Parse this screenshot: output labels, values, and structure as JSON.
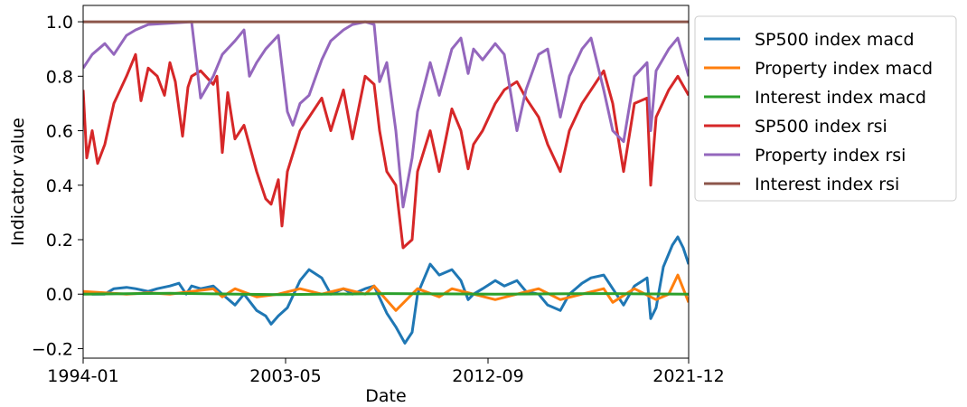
{
  "chart_data": {
    "type": "line",
    "title": "",
    "xlabel": "Date",
    "ylabel": "Indicator value",
    "x_range": [
      "1994-01",
      "2021-12"
    ],
    "ylim": [
      -0.235,
      1.06
    ],
    "xticks": [
      "1994-01",
      "2003-05",
      "2012-09",
      "2021-12"
    ],
    "yticks": [
      -0.2,
      0.0,
      0.2,
      0.4,
      0.6,
      0.8,
      1.0
    ],
    "ytick_labels": [
      "−0.2",
      "0.0",
      "0.2",
      "0.4",
      "0.6",
      "0.8",
      "1.0"
    ],
    "grid": false,
    "legend_position": "outside-right",
    "series": [
      {
        "name": "SP500 index macd",
        "color": "#1f77b4",
        "points": [
          [
            "1994-01",
            0.005
          ],
          [
            "1994-06",
            0.0
          ],
          [
            "1995-01",
            0.0
          ],
          [
            "1995-06",
            0.02
          ],
          [
            "1996-01",
            0.025
          ],
          [
            "1996-06",
            0.02
          ],
          [
            "1997-01",
            0.01
          ],
          [
            "1997-06",
            0.02
          ],
          [
            "1998-01",
            0.03
          ],
          [
            "1998-06",
            0.04
          ],
          [
            "1998-10",
            0.0
          ],
          [
            "1999-01",
            0.03
          ],
          [
            "1999-06",
            0.02
          ],
          [
            "2000-01",
            0.03
          ],
          [
            "2000-06",
            0.0
          ],
          [
            "2001-01",
            -0.04
          ],
          [
            "2001-06",
            0.0
          ],
          [
            "2002-01",
            -0.06
          ],
          [
            "2002-06",
            -0.08
          ],
          [
            "2002-09",
            -0.11
          ],
          [
            "2003-01",
            -0.08
          ],
          [
            "2003-06",
            -0.05
          ],
          [
            "2004-01",
            0.05
          ],
          [
            "2004-06",
            0.09
          ],
          [
            "2005-01",
            0.06
          ],
          [
            "2005-06",
            0.0
          ],
          [
            "2006-01",
            0.02
          ],
          [
            "2006-06",
            0.0
          ],
          [
            "2007-01",
            0.02
          ],
          [
            "2007-06",
            0.03
          ],
          [
            "2008-01",
            -0.07
          ],
          [
            "2008-06",
            -0.12
          ],
          [
            "2008-11",
            -0.18
          ],
          [
            "2009-03",
            -0.14
          ],
          [
            "2009-06",
            0.0
          ],
          [
            "2010-01",
            0.11
          ],
          [
            "2010-06",
            0.07
          ],
          [
            "2011-01",
            0.09
          ],
          [
            "2011-06",
            0.05
          ],
          [
            "2011-10",
            -0.02
          ],
          [
            "2012-01",
            0.0
          ],
          [
            "2012-06",
            0.02
          ],
          [
            "2013-01",
            0.05
          ],
          [
            "2013-06",
            0.03
          ],
          [
            "2014-01",
            0.05
          ],
          [
            "2014-06",
            0.01
          ],
          [
            "2015-01",
            0.0
          ],
          [
            "2015-06",
            -0.04
          ],
          [
            "2016-01",
            -0.06
          ],
          [
            "2016-06",
            0.0
          ],
          [
            "2017-01",
            0.04
          ],
          [
            "2017-06",
            0.06
          ],
          [
            "2018-01",
            0.07
          ],
          [
            "2018-06",
            0.02
          ],
          [
            "2018-12",
            -0.04
          ],
          [
            "2019-06",
            0.03
          ],
          [
            "2020-01",
            0.06
          ],
          [
            "2020-03",
            -0.09
          ],
          [
            "2020-06",
            -0.05
          ],
          [
            "2020-10",
            0.1
          ],
          [
            "2021-03",
            0.18
          ],
          [
            "2021-06",
            0.21
          ],
          [
            "2021-09",
            0.17
          ],
          [
            "2021-12",
            0.11
          ]
        ]
      },
      {
        "name": "Property index macd",
        "color": "#ff7f0e",
        "points": [
          [
            "1994-01",
            0.01
          ],
          [
            "1995-01",
            0.005
          ],
          [
            "1996-01",
            0.0
          ],
          [
            "1997-01",
            0.005
          ],
          [
            "1998-01",
            0.0
          ],
          [
            "1999-01",
            0.01
          ],
          [
            "2000-01",
            0.02
          ],
          [
            "2000-06",
            -0.01
          ],
          [
            "2001-01",
            0.02
          ],
          [
            "2002-01",
            -0.01
          ],
          [
            "2003-01",
            0.0
          ],
          [
            "2004-01",
            0.02
          ],
          [
            "2005-01",
            0.0
          ],
          [
            "2006-01",
            0.02
          ],
          [
            "2007-01",
            0.0
          ],
          [
            "2007-06",
            0.03
          ],
          [
            "2008-06",
            -0.06
          ],
          [
            "2009-06",
            0.02
          ],
          [
            "2010-06",
            -0.01
          ],
          [
            "2011-01",
            0.02
          ],
          [
            "2012-01",
            0.0
          ],
          [
            "2013-01",
            -0.02
          ],
          [
            "2014-01",
            0.0
          ],
          [
            "2015-01",
            0.02
          ],
          [
            "2016-01",
            -0.02
          ],
          [
            "2017-01",
            0.0
          ],
          [
            "2018-01",
            0.02
          ],
          [
            "2018-06",
            -0.03
          ],
          [
            "2019-06",
            0.02
          ],
          [
            "2020-06",
            -0.02
          ],
          [
            "2021-01",
            0.0
          ],
          [
            "2021-06",
            0.07
          ],
          [
            "2021-12",
            -0.03
          ]
        ]
      },
      {
        "name": "Interest index macd",
        "color": "#2ca02c",
        "points": [
          [
            "1994-01",
            0.0
          ],
          [
            "1998-01",
            0.003
          ],
          [
            "2003-01",
            -0.002
          ],
          [
            "2008-01",
            0.002
          ],
          [
            "2013-01",
            0.0
          ],
          [
            "2018-01",
            0.002
          ],
          [
            "2021-12",
            0.0
          ]
        ]
      },
      {
        "name": "SP500 index rsi",
        "color": "#d62728",
        "points": [
          [
            "1994-01",
            0.75
          ],
          [
            "1994-03",
            0.5
          ],
          [
            "1994-06",
            0.6
          ],
          [
            "1994-09",
            0.48
          ],
          [
            "1995-01",
            0.55
          ],
          [
            "1995-06",
            0.7
          ],
          [
            "1996-01",
            0.8
          ],
          [
            "1996-06",
            0.88
          ],
          [
            "1996-09",
            0.71
          ],
          [
            "1997-01",
            0.83
          ],
          [
            "1997-06",
            0.8
          ],
          [
            "1997-10",
            0.73
          ],
          [
            "1998-01",
            0.85
          ],
          [
            "1998-04",
            0.78
          ],
          [
            "1998-08",
            0.58
          ],
          [
            "1998-11",
            0.76
          ],
          [
            "1999-01",
            0.8
          ],
          [
            "1999-06",
            0.82
          ],
          [
            "2000-01",
            0.77
          ],
          [
            "2000-03",
            0.8
          ],
          [
            "2000-06",
            0.52
          ],
          [
            "2000-09",
            0.74
          ],
          [
            "2001-01",
            0.57
          ],
          [
            "2001-06",
            0.62
          ],
          [
            "2002-01",
            0.45
          ],
          [
            "2002-06",
            0.35
          ],
          [
            "2002-09",
            0.33
          ],
          [
            "2003-01",
            0.42
          ],
          [
            "2003-03",
            0.25
          ],
          [
            "2003-06",
            0.45
          ],
          [
            "2004-01",
            0.6
          ],
          [
            "2004-06",
            0.65
          ],
          [
            "2005-01",
            0.72
          ],
          [
            "2005-06",
            0.6
          ],
          [
            "2006-01",
            0.75
          ],
          [
            "2006-06",
            0.57
          ],
          [
            "2007-01",
            0.8
          ],
          [
            "2007-06",
            0.77
          ],
          [
            "2007-09",
            0.6
          ],
          [
            "2008-01",
            0.45
          ],
          [
            "2008-06",
            0.4
          ],
          [
            "2008-10",
            0.17
          ],
          [
            "2009-03",
            0.2
          ],
          [
            "2009-06",
            0.45
          ],
          [
            "2010-01",
            0.6
          ],
          [
            "2010-06",
            0.45
          ],
          [
            "2011-01",
            0.68
          ],
          [
            "2011-06",
            0.6
          ],
          [
            "2011-10",
            0.46
          ],
          [
            "2012-01",
            0.55
          ],
          [
            "2012-06",
            0.6
          ],
          [
            "2013-01",
            0.7
          ],
          [
            "2013-06",
            0.75
          ],
          [
            "2014-01",
            0.78
          ],
          [
            "2014-06",
            0.72
          ],
          [
            "2015-01",
            0.65
          ],
          [
            "2015-06",
            0.55
          ],
          [
            "2016-01",
            0.45
          ],
          [
            "2016-06",
            0.6
          ],
          [
            "2017-01",
            0.7
          ],
          [
            "2017-06",
            0.75
          ],
          [
            "2018-01",
            0.82
          ],
          [
            "2018-06",
            0.7
          ],
          [
            "2018-12",
            0.45
          ],
          [
            "2019-06",
            0.7
          ],
          [
            "2020-01",
            0.72
          ],
          [
            "2020-03",
            0.4
          ],
          [
            "2020-06",
            0.65
          ],
          [
            "2021-01",
            0.75
          ],
          [
            "2021-06",
            0.8
          ],
          [
            "2021-12",
            0.73
          ]
        ]
      },
      {
        "name": "Property index rsi",
        "color": "#9467bd",
        "points": [
          [
            "1994-01",
            0.83
          ],
          [
            "1994-06",
            0.88
          ],
          [
            "1995-01",
            0.92
          ],
          [
            "1995-06",
            0.88
          ],
          [
            "1996-01",
            0.95
          ],
          [
            "1996-06",
            0.97
          ],
          [
            "1997-01",
            0.99
          ],
          [
            "1998-01",
            0.995
          ],
          [
            "1999-01",
            1.0
          ],
          [
            "1999-06",
            0.72
          ],
          [
            "2000-01",
            0.8
          ],
          [
            "2000-06",
            0.88
          ],
          [
            "2001-01",
            0.93
          ],
          [
            "2001-06",
            0.97
          ],
          [
            "2001-09",
            0.8
          ],
          [
            "2002-01",
            0.85
          ],
          [
            "2002-06",
            0.9
          ],
          [
            "2003-01",
            0.95
          ],
          [
            "2003-06",
            0.67
          ],
          [
            "2003-09",
            0.62
          ],
          [
            "2004-01",
            0.7
          ],
          [
            "2004-06",
            0.73
          ],
          [
            "2005-01",
            0.86
          ],
          [
            "2005-06",
            0.93
          ],
          [
            "2006-01",
            0.97
          ],
          [
            "2006-06",
            0.99
          ],
          [
            "2007-01",
            1.0
          ],
          [
            "2007-06",
            0.99
          ],
          [
            "2007-09",
            0.78
          ],
          [
            "2008-01",
            0.85
          ],
          [
            "2008-06",
            0.6
          ],
          [
            "2008-10",
            0.32
          ],
          [
            "2009-03",
            0.5
          ],
          [
            "2009-06",
            0.67
          ],
          [
            "2010-01",
            0.85
          ],
          [
            "2010-06",
            0.73
          ],
          [
            "2011-01",
            0.9
          ],
          [
            "2011-06",
            0.94
          ],
          [
            "2011-10",
            0.81
          ],
          [
            "2012-01",
            0.9
          ],
          [
            "2012-06",
            0.86
          ],
          [
            "2013-01",
            0.92
          ],
          [
            "2013-06",
            0.88
          ],
          [
            "2014-01",
            0.6
          ],
          [
            "2014-06",
            0.75
          ],
          [
            "2015-01",
            0.88
          ],
          [
            "2015-06",
            0.9
          ],
          [
            "2016-01",
            0.65
          ],
          [
            "2016-06",
            0.8
          ],
          [
            "2017-01",
            0.9
          ],
          [
            "2017-06",
            0.94
          ],
          [
            "2018-01",
            0.75
          ],
          [
            "2018-06",
            0.6
          ],
          [
            "2018-12",
            0.56
          ],
          [
            "2019-06",
            0.8
          ],
          [
            "2020-01",
            0.85
          ],
          [
            "2020-03",
            0.6
          ],
          [
            "2020-06",
            0.82
          ],
          [
            "2021-01",
            0.9
          ],
          [
            "2021-06",
            0.94
          ],
          [
            "2021-12",
            0.8
          ]
        ]
      },
      {
        "name": "Interest index rsi",
        "color": "#8c564b",
        "points": [
          [
            "1994-01",
            1.0
          ],
          [
            "2021-12",
            1.0
          ]
        ]
      }
    ]
  }
}
